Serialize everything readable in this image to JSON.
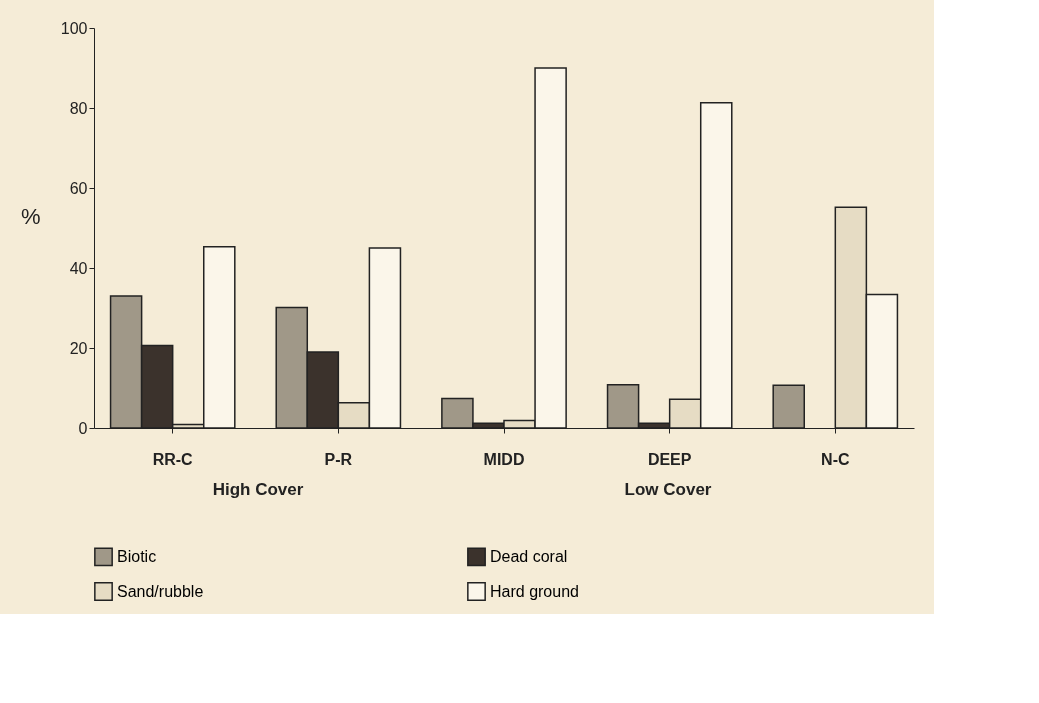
{
  "chart_data": {
    "type": "bar",
    "ylabel": "%",
    "categories": [
      "RR-C",
      "P-R",
      "MIDD",
      "DEEP",
      "N-C"
    ],
    "series": [
      {
        "name": "Biotic",
        "color": "#a09888",
        "values": [
          33.0,
          30.1,
          7.4,
          10.8,
          10.7
        ]
      },
      {
        "name": "Dead coral",
        "color": "#3b322c",
        "values": [
          20.6,
          19.0,
          1.2,
          1.2,
          null
        ]
      },
      {
        "name": "Sand/rubble",
        "color": "#e6dcc4",
        "values": [
          0.9,
          6.3,
          1.9,
          7.2,
          55.2
        ]
      },
      {
        "name": "Hard ground",
        "color": "#fbf6ea",
        "values": [
          45.3,
          45.0,
          90.0,
          81.3,
          33.4
        ]
      }
    ],
    "annotations": [
      "High Cover",
      "Low Cover"
    ],
    "ylim": [
      0,
      100
    ],
    "yticks": [
      0,
      20,
      40,
      60,
      80,
      100
    ],
    "grid": false,
    "legend": "bottom"
  }
}
